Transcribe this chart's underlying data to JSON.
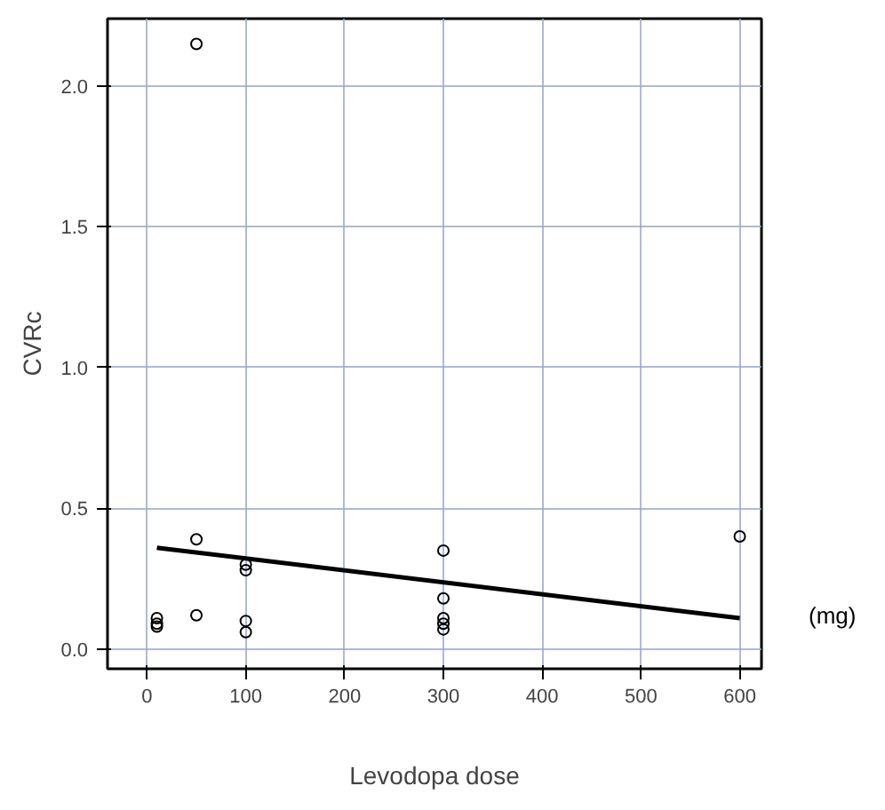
{
  "chart_data": {
    "type": "scatter",
    "xlabel": "Levodopa dose",
    "ylabel": "CVRc",
    "annotations": [
      "(mg)"
    ],
    "series": [
      {
        "color": "#000000",
        "marker": "circle",
        "x": [
          10,
          10,
          10,
          50,
          50,
          50,
          100,
          100,
          100,
          100,
          300,
          300,
          300,
          300,
          300,
          600
        ],
        "values": [
          0.09,
          0.11,
          0.08,
          0.39,
          0.12,
          2.15,
          0.3,
          0.28,
          0.1,
          0.06,
          0.35,
          0.18,
          0.11,
          0.09,
          0.07,
          0.4
        ]
      },
      {
        "type": "line",
        "color": "#000000",
        "line_style": "solid",
        "x": [
          10,
          600
        ],
        "values": [
          0.36,
          0.11
        ]
      }
    ],
    "xlim": [
      -40,
      622
    ],
    "ylim": [
      -0.07,
      2.24
    ],
    "xticks": [
      0,
      100,
      200,
      300,
      400,
      500,
      600
    ],
    "yticks": [
      {
        "value": 0,
        "label": "0.0"
      },
      {
        "value": 0.5,
        "label": "0.5"
      },
      {
        "value": 1,
        "label": "1.0"
      },
      {
        "value": 1.5,
        "label": "1.5"
      },
      {
        "value": 2,
        "label": "2.0"
      }
    ],
    "grid": true
  }
}
